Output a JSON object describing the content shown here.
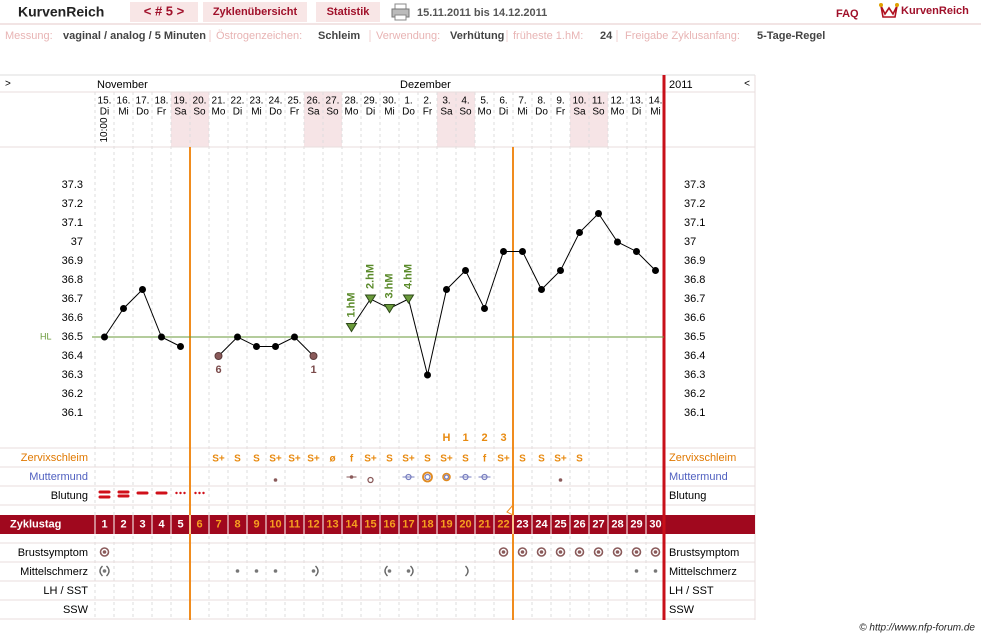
{
  "header": {
    "brand": "KurvenReich",
    "cycle_nav": "< # 5 >",
    "tabs": [
      "Zyklenübersicht",
      "Statistik"
    ],
    "period": "15.11.2011 bis 14.12.2011",
    "faq": "FAQ",
    "logo": "KurvenReich"
  },
  "settings_bar": [
    {
      "label": "Messung:",
      "value": "vaginal / analog / 5 Minuten"
    },
    {
      "label": "Östrogenzeichen:",
      "value": "Schleim"
    },
    {
      "label": "Verwendung:",
      "value": "Verhütung"
    },
    {
      "label": "früheste 1.hM:",
      "value": "24"
    },
    {
      "label": "Freigabe Zyklusanfang:",
      "value": "5-Tage-Regel"
    }
  ],
  "chart_data": {
    "type": "line",
    "nav_prev": ">",
    "nav_next": "<",
    "months": [
      "November",
      "Dezember",
      "2011"
    ],
    "time_note": "10:00",
    "dates": [
      "15.",
      "16.",
      "17.",
      "18.",
      "19.",
      "20.",
      "21.",
      "22.",
      "23.",
      "24.",
      "25.",
      "26.",
      "27.",
      "28.",
      "29.",
      "30.",
      "1.",
      "2.",
      "3.",
      "4.",
      "5.",
      "6.",
      "7.",
      "8.",
      "9.",
      "10.",
      "11.",
      "12.",
      "13.",
      "14."
    ],
    "weekdays": [
      "Di",
      "Mi",
      "Do",
      "Fr",
      "Sa",
      "So",
      "Mo",
      "Di",
      "Mi",
      "Do",
      "Fr",
      "Sa",
      "So",
      "Mo",
      "Di",
      "Mi",
      "Do",
      "Fr",
      "Sa",
      "So",
      "Mo",
      "Di",
      "Mi",
      "Do",
      "Fr",
      "Sa",
      "So",
      "Mo",
      "Di",
      "Mi"
    ],
    "categories": [
      1,
      2,
      3,
      4,
      5,
      6,
      7,
      8,
      9,
      10,
      11,
      12,
      13,
      14,
      15,
      16,
      17,
      18,
      19,
      20,
      21,
      22,
      23,
      24,
      25,
      26,
      27,
      28,
      29,
      30
    ],
    "values": [
      36.5,
      36.65,
      36.75,
      36.5,
      36.45,
      null,
      36.4,
      36.5,
      36.45,
      36.45,
      36.5,
      36.4,
      null,
      36.55,
      36.7,
      36.65,
      36.7,
      36.3,
      36.75,
      36.85,
      36.65,
      36.95,
      36.95,
      36.75,
      36.85,
      37.05,
      37.15,
      37.0,
      36.95,
      36.85
    ],
    "color": "#000000",
    "point_markers": [
      "dot",
      "dot",
      "dot",
      "dot",
      "dot",
      null,
      "excluded",
      "dot",
      "dot",
      "dot",
      "dot",
      "excluded",
      null,
      "triangle",
      "triangle",
      "triangle",
      "triangle",
      "dot",
      "dot",
      "dot",
      "dot",
      "dot",
      "dot",
      "dot",
      "dot",
      "dot",
      "dot",
      "dot",
      "dot",
      "dot"
    ],
    "point_labels": [
      null,
      null,
      null,
      null,
      null,
      null,
      "6",
      null,
      null,
      null,
      null,
      "1",
      null,
      "1.hM",
      "2.hM",
      "3.hM",
      "4.hM",
      null,
      null,
      null,
      null,
      null,
      null,
      null,
      null,
      null,
      null,
      null,
      null,
      null
    ],
    "ylim": [
      35.9,
      37.5
    ],
    "yticks": [
      36.1,
      36.2,
      36.3,
      36.4,
      36.5,
      36.6,
      36.7,
      36.8,
      36.9,
      37,
      37.1,
      37.2,
      37.3
    ],
    "coverline": 36.5,
    "coverline_label": "HL",
    "coverline_color": "#6a9a3a",
    "peak": [
      null,
      null,
      null,
      null,
      null,
      null,
      null,
      null,
      null,
      null,
      null,
      null,
      null,
      null,
      null,
      null,
      null,
      null,
      "H",
      "1",
      "2",
      "3",
      null,
      null,
      null,
      null,
      null,
      null,
      null,
      null
    ],
    "cervix": [
      null,
      null,
      null,
      null,
      null,
      null,
      "S+",
      "S",
      "S",
      "S+",
      "S+",
      "S+",
      "ø",
      "f",
      "S+",
      "S",
      "S+",
      "S",
      "S+",
      "S",
      "f",
      "S+",
      "S",
      "S",
      "S+",
      "S",
      null,
      null,
      null,
      null
    ],
    "fertile_window": [
      6,
      22
    ],
    "row_labels": {
      "cervix": "Zervixschleim",
      "os": "Muttermund",
      "bleeding": "Blutung",
      "cycle_day": "Zyklustag",
      "breast": "Brustsymptom",
      "mittelschmerz": "Mittelschmerz",
      "lh": "LH / SST",
      "ssw": "SSW"
    }
  },
  "footer": "© http://www.nfp-forum.de"
}
